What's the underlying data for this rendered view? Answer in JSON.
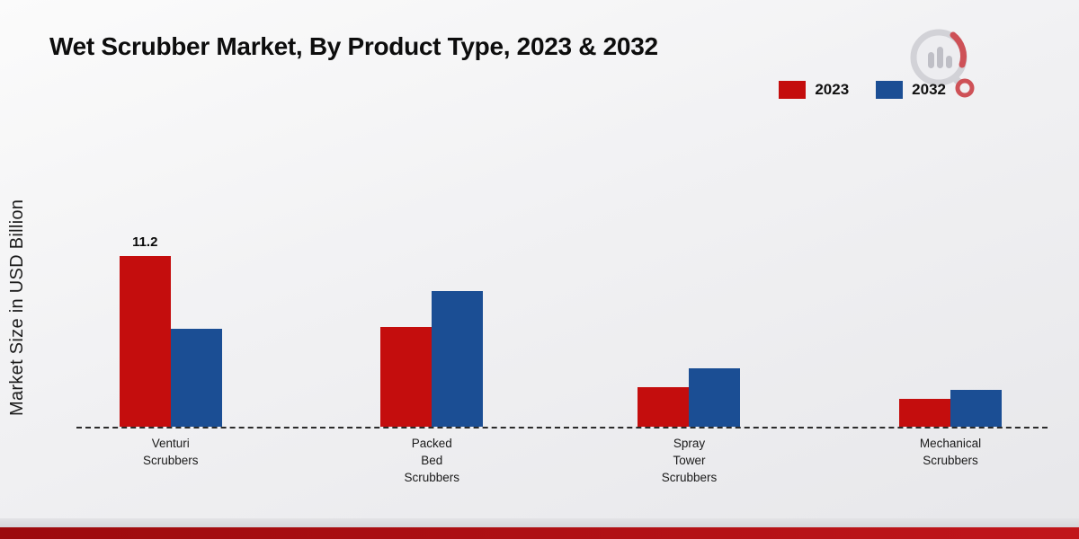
{
  "page": {
    "title": "Wet Scrubber Market, By Product Type, 2023 & 2032",
    "ylabel": "Market Size in USD Billion"
  },
  "legend": {
    "items": [
      {
        "label": "2023",
        "color": "#c40d0d"
      },
      {
        "label": "2032",
        "color": "#1b4e94"
      }
    ]
  },
  "chart_data": {
    "type": "bar",
    "title": "Wet Scrubber Market, By Product Type, 2023 & 2032",
    "xlabel": "",
    "ylabel": "Market Size in USD Billion",
    "categories": [
      [
        "Venturi",
        "Scrubbers"
      ],
      [
        "Packed",
        "Bed",
        "Scrubbers"
      ],
      [
        "Spray",
        "Tower",
        "Scrubbers"
      ],
      [
        "Mechanical",
        "Scrubbers"
      ]
    ],
    "series": [
      {
        "name": "2023",
        "color": "#c40d0d",
        "values": [
          11.2,
          6.5,
          2.6,
          1.8
        ]
      },
      {
        "name": "2032",
        "color": "#1b4e94",
        "values": [
          6.4,
          8.9,
          3.8,
          2.4
        ]
      }
    ],
    "bar_labels": [
      {
        "category": 0,
        "series": 0,
        "text": "11.2"
      }
    ],
    "ylim": [
      0,
      12
    ],
    "grid": "off",
    "baseline_style": "dashed",
    "legend_position": "top-right"
  }
}
